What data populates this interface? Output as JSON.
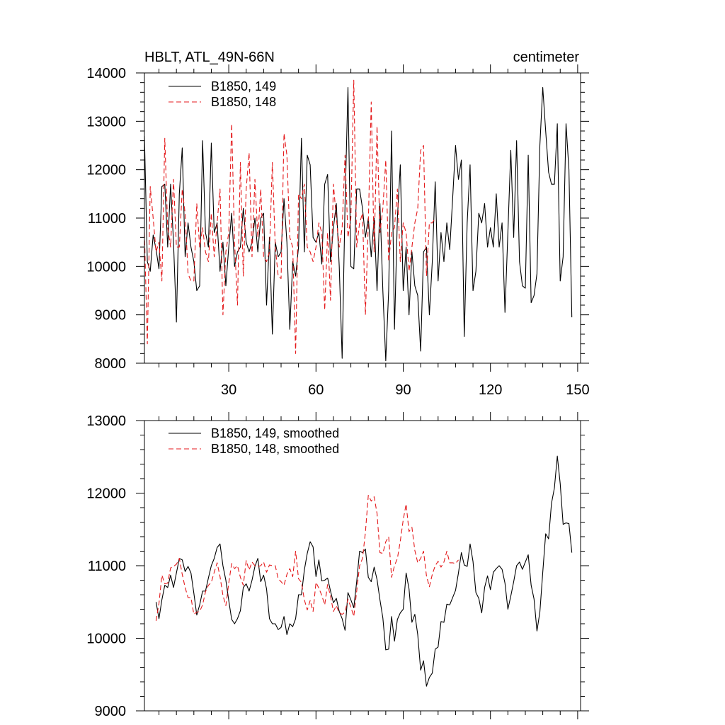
{
  "colors": {
    "series_149": "#000000",
    "series_148": "#e41a1c"
  },
  "chart_data": [
    {
      "type": "line",
      "title": "HBLT, ATL_49N-66N",
      "units": "centimeter",
      "xlim": [
        1,
        151
      ],
      "ylim": [
        8000,
        14000
      ],
      "xticks": [
        30,
        60,
        90,
        120,
        150
      ],
      "yticks": [
        8000,
        9000,
        10000,
        11000,
        12000,
        13000,
        14000
      ],
      "legend_position": "top-left",
      "series": [
        {
          "name": "B1850, 149",
          "style": "solid",
          "x_start": 1,
          "values": [
            12700,
            10100,
            9900,
            10650,
            10350,
            9950,
            11650,
            11700,
            10400,
            11700,
            10500,
            8850,
            11500,
            12450,
            10200,
            10900,
            10400,
            10100,
            9500,
            9600,
            12600,
            10700,
            10400,
            12550,
            10700,
            10900,
            9900,
            10500,
            9600,
            10400,
            11100,
            10000,
            10300,
            10400,
            11200,
            10500,
            10300,
            10500,
            11000,
            10300,
            11000,
            11100,
            9200,
            10600,
            8600,
            10500,
            10200,
            10300,
            11400,
            10500,
            8700,
            10100,
            9800,
            10400,
            12650,
            10300,
            12300,
            12100,
            10600,
            10500,
            10700,
            10050,
            11700,
            11900,
            10100,
            10800,
            11300,
            10000,
            8100,
            11300,
            13700,
            10000,
            9950,
            11600,
            11600,
            11200,
            10600,
            11000,
            10200,
            11000,
            9500,
            11300,
            9500,
            8050,
            9500,
            12800,
            8700,
            11000,
            12100,
            9500,
            10400,
            9000,
            10300,
            9600,
            9400,
            8250,
            10300,
            10400,
            9000,
            10100,
            11750,
            9700,
            10700,
            10100,
            10900,
            10350,
            11400,
            12500,
            11800,
            12200,
            8550,
            10900,
            12100,
            9500,
            9900,
            11100,
            10900,
            11300,
            10400,
            10800,
            10400,
            11500,
            10400,
            10900,
            9050,
            10700,
            12400,
            10600,
            12600,
            10100,
            9600,
            9550,
            12300,
            9250,
            9400,
            9850,
            12500,
            13700,
            12800,
            11950,
            11700,
            11700,
            12950,
            9700,
            10200,
            12950,
            12000,
            8950
          ]
        },
        {
          "name": "B1850, 148",
          "style": "dashed",
          "x_start": 1,
          "values": [
            10700,
            8400,
            11650,
            11000,
            10300,
            10500,
            9700,
            12650,
            10800,
            10400,
            11800,
            10400,
            10400,
            11600,
            11100,
            9850,
            9700,
            9700,
            11300,
            10400,
            10800,
            10300,
            10100,
            11100,
            10200,
            10900,
            11600,
            9000,
            10300,
            10700,
            12950,
            10500,
            9200,
            12150,
            9800,
            11600,
            12350,
            10200,
            11800,
            10600,
            11600,
            10200,
            10100,
            10300,
            12150,
            10400,
            9800,
            9750,
            12750,
            12300,
            10600,
            10400,
            8200,
            11500,
            11400,
            11700,
            10400,
            10300,
            10100,
            10400,
            10900,
            10700,
            9100,
            10700,
            9300,
            11700,
            11000,
            10400,
            10800,
            12300,
            10600,
            11000,
            13850,
            10400,
            10900,
            11100,
            9000,
            10900,
            13400,
            10300,
            12900,
            10700,
            11200,
            12200,
            10100,
            10700,
            10800,
            11600,
            10100,
            10900,
            10700,
            9900,
            10400,
            10900,
            11200,
            12400,
            12500,
            9800,
            10900,
            10900,
            11000
          ]
        }
      ]
    },
    {
      "type": "line",
      "xlim": [
        1,
        151
      ],
      "ylim": [
        9000,
        13000
      ],
      "yticks": [
        9000,
        10000,
        11000,
        12000,
        13000
      ],
      "legend_position": "top-left",
      "series": [
        {
          "name": "B1850, 149, smoothed",
          "style": "solid",
          "x_start": 5,
          "values": [
            10500,
            10270,
            10530,
            10730,
            10700,
            10870,
            10700,
            10900,
            11100,
            11080,
            10920,
            10990,
            10900,
            10620,
            10320,
            10460,
            10650,
            10650,
            10830,
            11000,
            11100,
            11250,
            11300,
            11000,
            10800,
            10520,
            10260,
            10200,
            10270,
            10380,
            10700,
            10750,
            10650,
            10800,
            10990,
            11100,
            10780,
            10870,
            10680,
            10270,
            10200,
            10200,
            10120,
            10150,
            10300,
            10050,
            10200,
            10160,
            10270,
            10600,
            10600,
            10940,
            11170,
            11330,
            11260,
            10850,
            11080,
            10790,
            10800,
            10830,
            10650,
            10490,
            10550,
            10370,
            10270,
            10110,
            10630,
            10530,
            10420,
            10780,
            11200,
            11180,
            11230,
            10840,
            10780,
            10980,
            10810,
            10530,
            10280,
            9840,
            9850,
            10300,
            9960,
            10260,
            10350,
            10400,
            10900,
            10680,
            10220,
            10330,
            10050,
            9560,
            9690,
            9340,
            9460,
            9520,
            9850,
            9880,
            10230,
            10220,
            10470,
            10460,
            10560,
            10660,
            10900,
            11180,
            11010,
            10990,
            11300,
            11060,
            10630,
            10550,
            10350,
            10700,
            10860,
            10670,
            10910,
            10960,
            11000,
            10950,
            10760,
            10400,
            10580,
            10780,
            11000,
            11050,
            10950,
            11050,
            11150,
            10730,
            10540,
            10100,
            10360,
            10910,
            11440,
            11370,
            11860,
            12070,
            12510,
            12130,
            11570,
            11590,
            11580,
            11180
          ]
        },
        {
          "name": "B1850, 148, smoothed",
          "style": "dashed",
          "x_start": 5,
          "values": [
            10240,
            10480,
            10870,
            10750,
            10760,
            10970,
            10990,
            11020,
            11100,
            10880,
            10700,
            10560,
            10560,
            10330,
            10360,
            10370,
            10460,
            10640,
            10730,
            10770,
            10910,
            11040,
            10850,
            10590,
            10450,
            10760,
            11030,
            10960,
            11000,
            10840,
            10730,
            11070,
            10940,
            11050,
            11000,
            10990,
            11000,
            11050,
            10910,
            11010,
            11000,
            11000,
            10820,
            10780,
            10730,
            10880,
            10960,
            10850,
            11200,
            10820,
            10770,
            10530,
            10390,
            10520,
            10370,
            10770,
            10690,
            10590,
            10460,
            10740,
            10580,
            10370,
            10450,
            10350,
            10330,
            10360,
            10540,
            10430,
            10300,
            10650,
            11000,
            11100,
            11460,
            11970,
            11890,
            11950,
            11720,
            11180,
            11170,
            11330,
            11400,
            10840,
            11000,
            11100,
            11340,
            11630,
            11850,
            11470,
            11530,
            11210,
            11040,
            11100,
            11200,
            10860,
            10710,
            10880,
            11000,
            11060,
            10980,
            11050,
            11200,
            11040,
            11040,
            11030,
            11080
          ]
        }
      ]
    }
  ]
}
